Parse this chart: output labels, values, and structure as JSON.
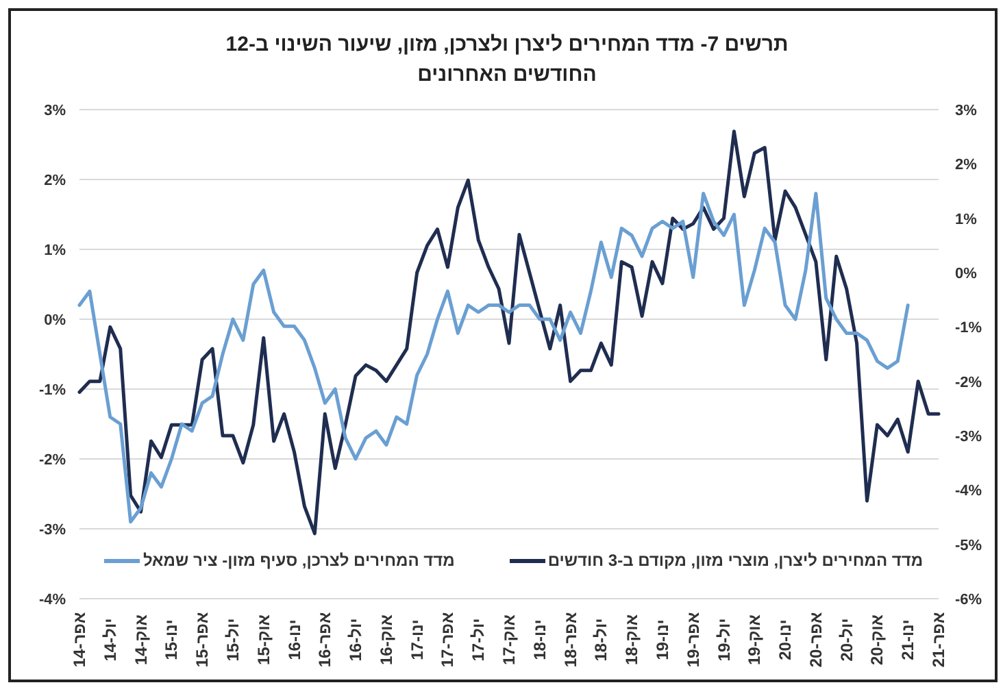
{
  "chart_data": {
    "type": "line",
    "title": "תרשים 7- מדד המחירים ליצרן ולצרכן, מזון, שיעור השינוי ב-12 החודשים האחרונים",
    "x": [
      "2014-04",
      "2014-05",
      "2014-06",
      "2014-07",
      "2014-08",
      "2014-09",
      "2014-10",
      "2014-11",
      "2014-12",
      "2015-01",
      "2015-02",
      "2015-03",
      "2015-04",
      "2015-05",
      "2015-06",
      "2015-07",
      "2015-08",
      "2015-09",
      "2015-10",
      "2015-11",
      "2015-12",
      "2016-01",
      "2016-02",
      "2016-03",
      "2016-04",
      "2016-05",
      "2016-06",
      "2016-07",
      "2016-08",
      "2016-09",
      "2016-10",
      "2016-11",
      "2016-12",
      "2017-01",
      "2017-02",
      "2017-03",
      "2017-04",
      "2017-05",
      "2017-06",
      "2017-07",
      "2017-08",
      "2017-09",
      "2017-10",
      "2017-11",
      "2017-12",
      "2018-01",
      "2018-02",
      "2018-03",
      "2018-04",
      "2018-05",
      "2018-06",
      "2018-07",
      "2018-08",
      "2018-09",
      "2018-10",
      "2018-11",
      "2018-12",
      "2019-01",
      "2019-02",
      "2019-03",
      "2019-04",
      "2019-05",
      "2019-06",
      "2019-07",
      "2019-08",
      "2019-09",
      "2019-10",
      "2019-11",
      "2019-12",
      "2020-01",
      "2020-02",
      "2020-03",
      "2020-04",
      "2020-05",
      "2020-06",
      "2020-07",
      "2020-08",
      "2020-09",
      "2020-10",
      "2020-11",
      "2020-12",
      "2021-01",
      "2021-02",
      "2021-03",
      "2021-04"
    ],
    "series": [
      {
        "name": "מדד המחירים ליצרן, מוצרי מזון, מקודם ב-3 חודשים",
        "color": "#1f2d50",
        "axis": "y2",
        "values": [
          -2.2,
          -2.0,
          -2.0,
          -1.0,
          -1.4,
          -4.1,
          -4.4,
          -3.1,
          -3.4,
          -2.8,
          -2.8,
          -2.8,
          -1.6,
          -1.4,
          -3.0,
          -3.0,
          -3.5,
          -2.8,
          -1.2,
          -3.1,
          -2.6,
          -3.3,
          -4.3,
          -4.8,
          -2.6,
          -3.6,
          -2.8,
          -1.9,
          -1.7,
          -1.8,
          -2.0,
          -1.7,
          -1.4,
          0.0,
          0.5,
          0.8,
          0.1,
          1.2,
          1.7,
          0.6,
          0.1,
          -0.3,
          -1.3,
          0.7,
          0.0,
          -0.7,
          -1.4,
          -0.6,
          -2.0,
          -1.8,
          -1.8,
          -1.3,
          -1.7,
          0.2,
          0.1,
          -0.8,
          0.2,
          -0.2,
          1.0,
          0.8,
          0.9,
          1.2,
          0.8,
          1.0,
          2.6,
          1.4,
          2.2,
          2.3,
          0.6,
          1.5,
          1.2,
          0.7,
          0.2,
          -1.6,
          0.3,
          -0.3,
          -1.3,
          -4.2,
          -2.8,
          -3.0,
          -2.7,
          -3.3,
          -2.0,
          -2.6,
          -2.6
        ]
      },
      {
        "name": "מדד המחירים לצרכן, סעיף מזון- ציר שמאל",
        "color": "#6a9fd2",
        "values": [
          0.2,
          0.4,
          -0.5,
          -1.4,
          -1.5,
          -2.9,
          -2.7,
          -2.2,
          -2.4,
          -2.0,
          -1.5,
          -1.6,
          -1.2,
          -1.1,
          -0.5,
          0.0,
          -0.3,
          0.5,
          0.7,
          0.1,
          -0.1,
          -0.1,
          -0.3,
          -0.7,
          -1.2,
          -1.0,
          -1.7,
          -2.0,
          -1.7,
          -1.6,
          -1.8,
          -1.4,
          -1.5,
          -0.8,
          -0.5,
          0.0,
          0.4,
          -0.2,
          0.2,
          0.1,
          0.2,
          0.2,
          0.1,
          0.2,
          0.2,
          0.0,
          0.0,
          -0.3,
          0.1,
          -0.2,
          0.4,
          1.1,
          0.6,
          1.3,
          1.2,
          0.9,
          1.3,
          1.4,
          1.3,
          1.4,
          0.6,
          1.8,
          1.4,
          1.2,
          1.5,
          0.2,
          0.7,
          1.3,
          1.1,
          0.2,
          0.0,
          0.7,
          1.8,
          0.3,
          0.0,
          -0.2,
          -0.2,
          -0.3,
          -0.6,
          -0.7,
          -0.6,
          0.2,
          null,
          null,
          null
        ]
      }
    ],
    "xlim": [
      "2014-04",
      "2021-04"
    ],
    "xticks": [
      {
        "value": "2014-04",
        "label": "אפר-14"
      },
      {
        "value": "2014-07",
        "label": "יול-14"
      },
      {
        "value": "2014-10",
        "label": "אוק-14"
      },
      {
        "value": "2015-01",
        "label": "ינו-15"
      },
      {
        "value": "2015-04",
        "label": "אפר-15"
      },
      {
        "value": "2015-07",
        "label": "יול-15"
      },
      {
        "value": "2015-10",
        "label": "אוק-15"
      },
      {
        "value": "2016-01",
        "label": "ינו-16"
      },
      {
        "value": "2016-04",
        "label": "אפר-16"
      },
      {
        "value": "2016-07",
        "label": "יול-16"
      },
      {
        "value": "2016-10",
        "label": "אוק-16"
      },
      {
        "value": "2017-01",
        "label": "ינו-17"
      },
      {
        "value": "2017-04",
        "label": "אפר-17"
      },
      {
        "value": "2017-07",
        "label": "יול-17"
      },
      {
        "value": "2017-10",
        "label": "אוק-17"
      },
      {
        "value": "2018-01",
        "label": "ינו-18"
      },
      {
        "value": "2018-04",
        "label": "אפר-18"
      },
      {
        "value": "2018-07",
        "label": "יול-18"
      },
      {
        "value": "2018-10",
        "label": "אוק-18"
      },
      {
        "value": "2019-01",
        "label": "ינו-19"
      },
      {
        "value": "2019-04",
        "label": "אפר-19"
      },
      {
        "value": "2019-07",
        "label": "יול-19"
      },
      {
        "value": "2019-10",
        "label": "אוק-19"
      },
      {
        "value": "2020-01",
        "label": "ינו-20"
      },
      {
        "value": "2020-04",
        "label": "אפר-20"
      },
      {
        "value": "2020-07",
        "label": "יול-20"
      },
      {
        "value": "2020-10",
        "label": "אוק-20"
      },
      {
        "value": "2021-01",
        "label": "ינו-21"
      },
      {
        "value": "2021-04",
        "label": "אפר-21"
      }
    ],
    "ylim": [
      -4,
      3
    ],
    "yticks": [
      {
        "value": -4,
        "label": "-4%"
      },
      {
        "value": -3,
        "label": "-3%"
      },
      {
        "value": -2,
        "label": "-2%"
      },
      {
        "value": -1,
        "label": "-1%"
      },
      {
        "value": 0,
        "label": "0%"
      },
      {
        "value": 1,
        "label": "1%"
      },
      {
        "value": 2,
        "label": "2%"
      },
      {
        "value": 3,
        "label": "3%"
      }
    ],
    "y2lim": [
      -6,
      3
    ],
    "y2ticks": [
      {
        "value": -6,
        "label": "-6%"
      },
      {
        "value": -5,
        "label": "-5%"
      },
      {
        "value": -4,
        "label": "-4%"
      },
      {
        "value": -3,
        "label": "-3%"
      },
      {
        "value": -2,
        "label": "-2%"
      },
      {
        "value": -1,
        "label": "-1%"
      },
      {
        "value": 0,
        "label": "0%"
      },
      {
        "value": 1,
        "label": "1%"
      },
      {
        "value": 2,
        "label": "2%"
      },
      {
        "value": 3,
        "label": "3%"
      }
    ],
    "grid": "y",
    "legend": "bottom"
  }
}
